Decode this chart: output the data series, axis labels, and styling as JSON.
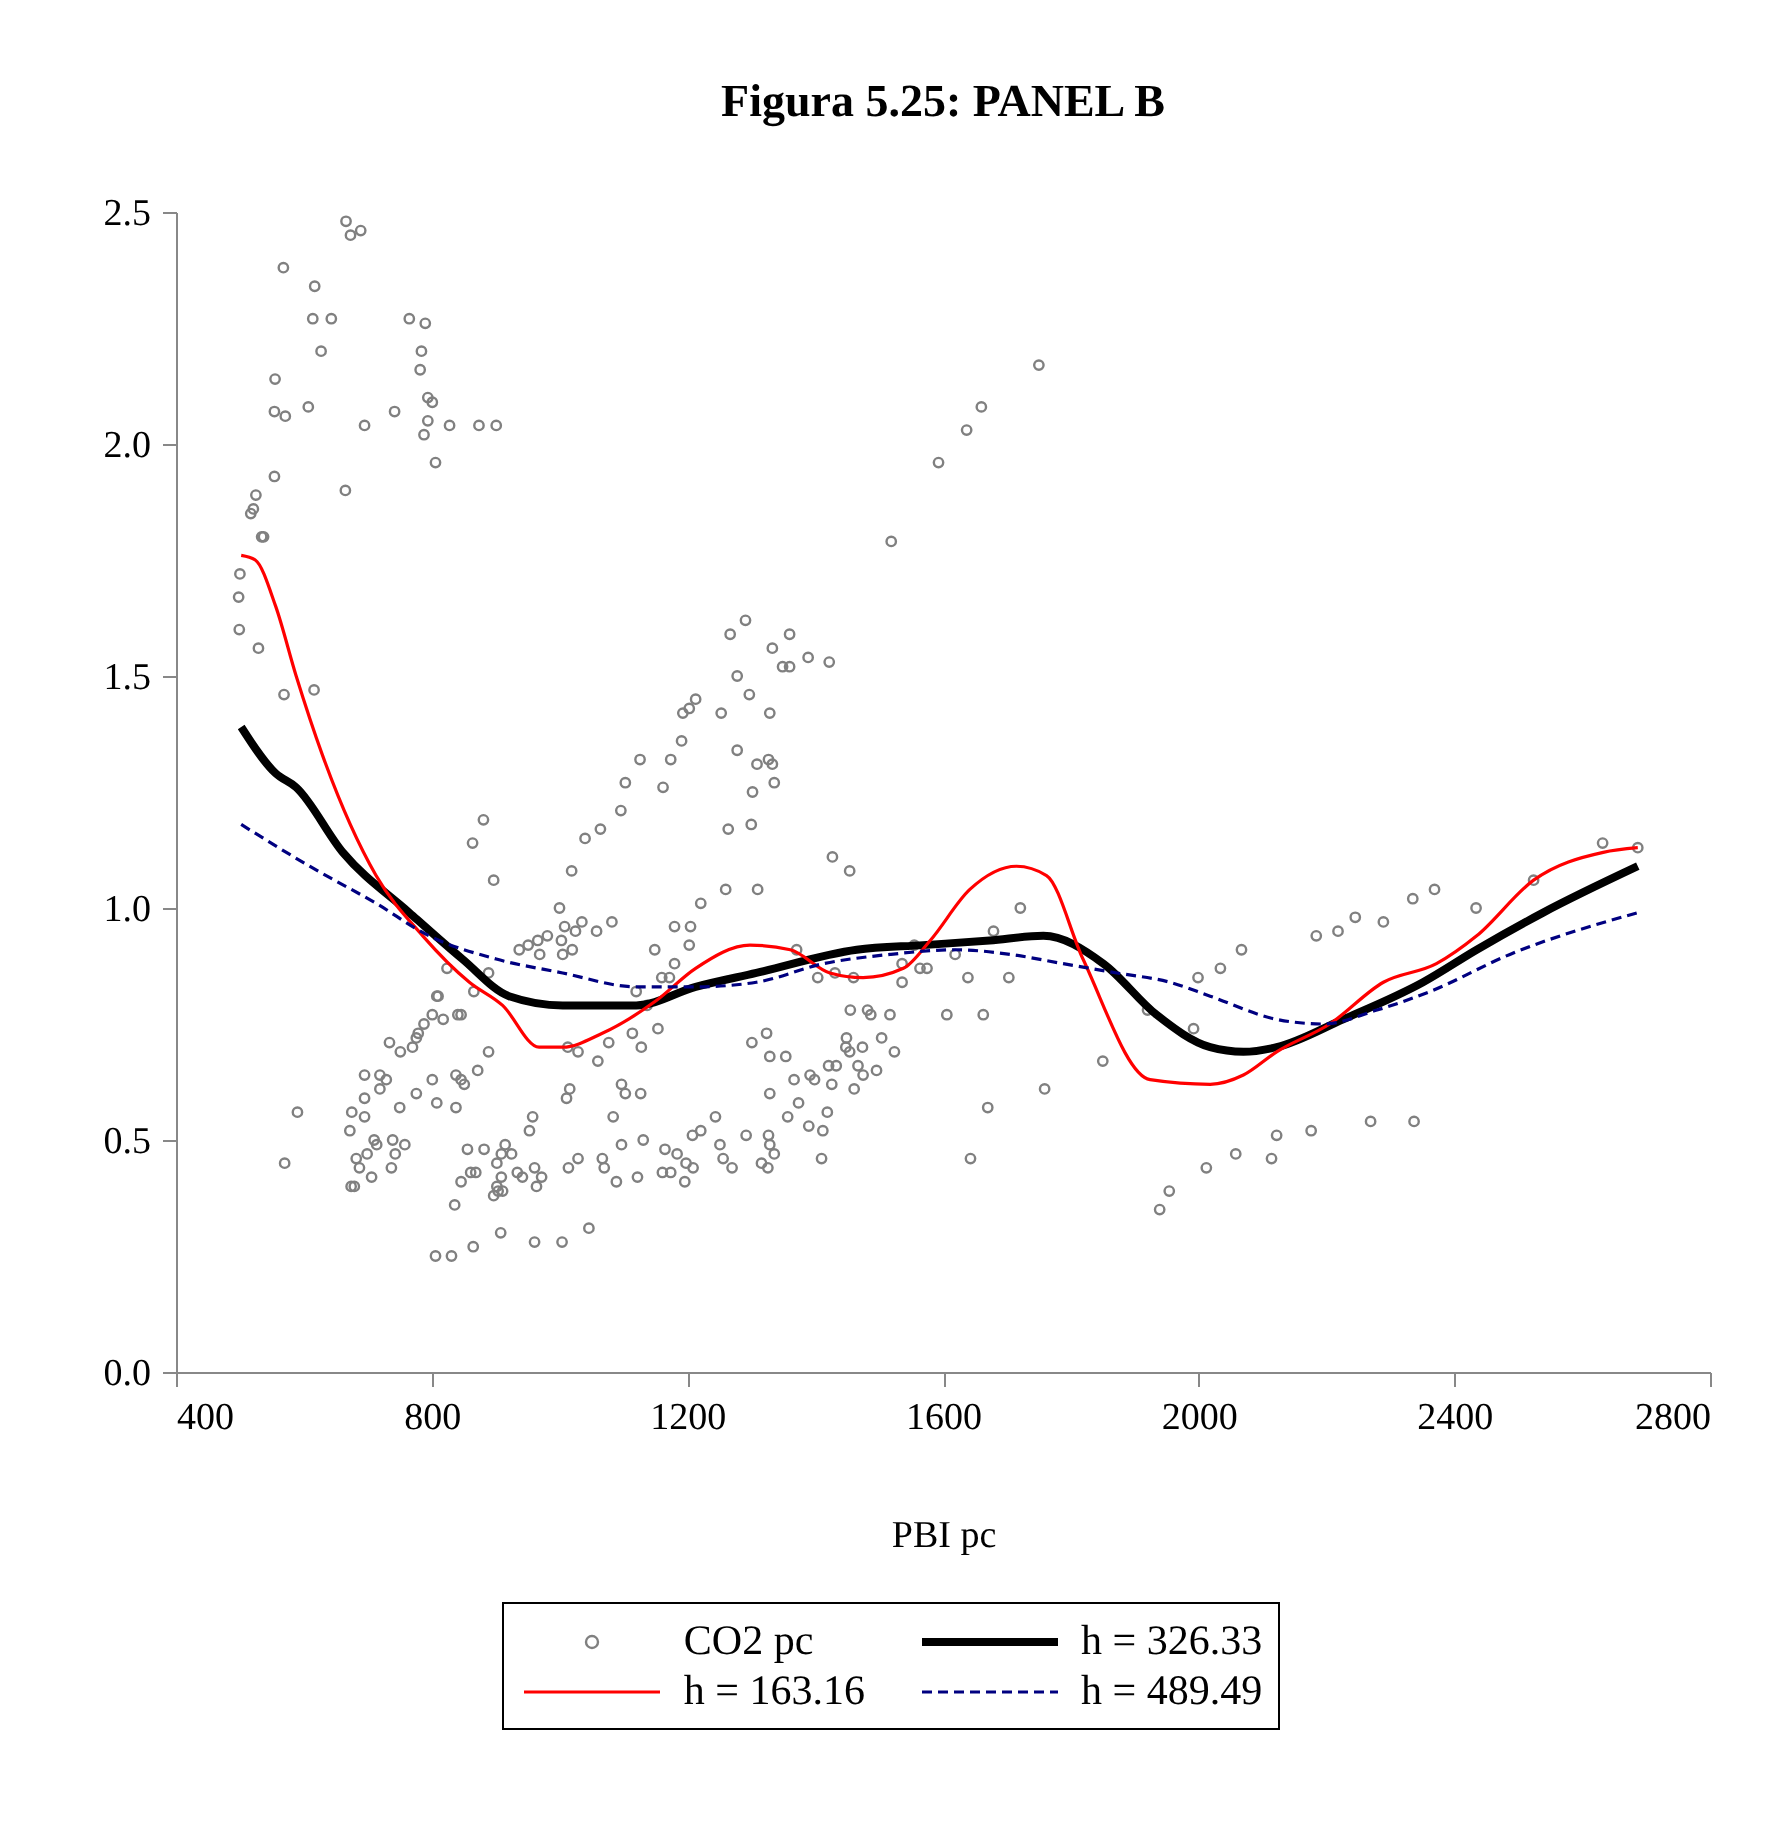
{
  "chart_data": {
    "type": "scatter",
    "title": "Figura 5.25: PANEL B",
    "xlabel": "PBI pc",
    "xlim": [
      400,
      2800
    ],
    "xticks": [
      400,
      800,
      1200,
      1600,
      2000,
      2400,
      2800
    ],
    "ylim": [
      0,
      2.5
    ],
    "yticks": [
      {
        "value": 0,
        "label": "0.0"
      },
      0.5,
      {
        "value": 1,
        "label": "1.0"
      },
      1.5,
      {
        "value": 2,
        "label": "2.0"
      },
      2.5
    ],
    "grid": false,
    "legend": "bottom",
    "series": [
      {
        "name": "CO2 pc",
        "type": "scatter",
        "marker": "circle",
        "color": "#808080",
        "x": [
          666,
          689,
          673,
          568,
          617,
          614,
          643,
          765,
          790,
          627,
          784,
          782,
          555,
          554,
          571,
          607,
          695,
          742,
          794,
          801,
          794,
          788,
          828,
          874,
          901,
          806,
          554,
          665,
          525,
          521,
          517,
          534,
          537,
          500,
          498,
          499,
          529,
          569,
          616,
          1193,
          1203,
          1213,
          1191,
          1126,
          1174,
          1103,
          1162,
          1750,
          1660,
          1637,
          1593,
          1519,
          1291,
          1267,
          1360,
          1333,
          1278,
          1349,
          1360,
          1389,
          1422,
          1297,
          1253,
          1329,
          1278,
          1309,
          1327,
          1333,
          1336,
          1302,
          881,
          864,
          1096,
          1064,
          1040,
          897,
          1019,
          1000,
          1082,
          1035,
          1025,
          1008,
          981,
          966,
          951,
          937,
          969,
          1003,
          1020,
          1005,
          1058,
          1180,
          1205,
          1149,
          1203,
          1180,
          1160,
          1172,
          1120,
          1137,
          824,
          889,
          866,
          808,
          810,
          841,
          846,
          818,
          801,
          788,
          779,
          776,
          770,
          751,
          734,
          889,
          1013,
          1029,
          1060,
          1077,
          1114,
          1128,
          1154,
          695,
          719,
          729,
          719,
          695,
          675,
          695,
          672,
          590,
          570,
          801,
          776,
          750,
          808,
          838,
          838,
          846,
          851,
          872,
          710,
          714,
          739,
          758,
          743,
          682,
          699,
          687,
          737,
          706,
          674,
          679,
          958,
          953,
          915,
          856,
          882,
          925,
          909,
          902,
          861,
          869,
          846,
          934,
          942,
          961,
          972,
          964,
          909,
          902,
          897,
          911,
          904,
          836,
          1014,
          1029,
          1067,
          1070,
          1089,
          1097,
          1131,
          1122,
          1084,
          1097,
          1103,
          1127,
          1016,
          1011,
          1165,
          1184,
          1161,
          1174,
          1198,
          1196,
          1208,
          806,
          831,
          865,
          908,
          961,
          1004,
          1046,
          1264,
          1300,
          1427,
          1454,
          1260,
          1310,
          1221,
          1371,
          1721,
          1679,
          1555,
          1536,
          1564,
          1575,
          1619,
          1404,
          1431,
          1460,
          1536,
          1639,
          1703,
          1455,
          1482,
          1487,
          1517,
          1606,
          1663,
          1324,
          1301,
          1329,
          1354,
          1449,
          1448,
          1474,
          1454,
          1504,
          1524,
          1467,
          1496,
          1475,
          1421,
          1433,
          1392,
          1399,
          1367,
          1426,
          1461,
          1329,
          1374,
          1419,
          1357,
          1390,
          1412,
          1244,
          1221,
          1251,
          1292,
          1327,
          1329,
          1336,
          1316,
          1326,
          1256,
          1270,
          1209,
          1410,
          1759,
          1670,
          1643,
          1850,
          1920,
          1992,
          1999,
          1939,
          1954,
          2012,
          2034,
          2067,
          2058,
          2114,
          2122,
          2176,
          2269,
          2337,
          2184,
          2218,
          2245,
          2289,
          2335,
          2369,
          2434,
          2524,
          2632,
          2687
        ],
        "values": [
          2.48,
          2.46,
          2.45,
          2.38,
          2.34,
          2.27,
          2.27,
          2.27,
          2.26,
          2.2,
          2.2,
          2.16,
          2.14,
          2.07,
          2.06,
          2.08,
          2.04,
          2.07,
          2.1,
          2.09,
          2.05,
          2.02,
          2.04,
          2.04,
          2.04,
          1.96,
          1.93,
          1.9,
          1.89,
          1.86,
          1.85,
          1.8,
          1.8,
          1.72,
          1.67,
          1.6,
          1.56,
          1.46,
          1.47,
          1.42,
          1.43,
          1.45,
          1.36,
          1.32,
          1.32,
          1.27,
          1.26,
          2.17,
          2.08,
          2.03,
          1.96,
          1.79,
          1.62,
          1.59,
          1.59,
          1.56,
          1.5,
          1.52,
          1.52,
          1.54,
          1.53,
          1.46,
          1.42,
          1.42,
          1.34,
          1.31,
          1.32,
          1.31,
          1.27,
          1.25,
          1.19,
          1.14,
          1.21,
          1.17,
          1.15,
          1.06,
          1.08,
          1.0,
          0.97,
          0.97,
          0.95,
          0.96,
          0.94,
          0.93,
          0.92,
          0.91,
          0.9,
          0.93,
          0.91,
          0.9,
          0.95,
          0.96,
          0.96,
          0.91,
          0.92,
          0.88,
          0.85,
          0.85,
          0.82,
          0.79,
          0.87,
          0.86,
          0.82,
          0.81,
          0.81,
          0.77,
          0.77,
          0.76,
          0.77,
          0.75,
          0.73,
          0.72,
          0.7,
          0.69,
          0.71,
          0.69,
          0.7,
          0.69,
          0.67,
          0.71,
          0.73,
          0.7,
          0.74,
          0.64,
          0.64,
          0.63,
          0.61,
          0.59,
          0.56,
          0.55,
          0.52,
          0.56,
          0.45,
          0.63,
          0.6,
          0.57,
          0.58,
          0.57,
          0.64,
          0.63,
          0.62,
          0.65,
          0.5,
          0.49,
          0.5,
          0.49,
          0.47,
          0.46,
          0.47,
          0.44,
          0.44,
          0.42,
          0.4,
          0.4,
          0.55,
          0.52,
          0.49,
          0.48,
          0.48,
          0.47,
          0.47,
          0.45,
          0.43,
          0.43,
          0.41,
          0.43,
          0.42,
          0.44,
          0.42,
          0.4,
          0.42,
          0.4,
          0.38,
          0.39,
          0.39,
          0.36,
          0.44,
          0.46,
          0.46,
          0.44,
          0.41,
          0.49,
          0.5,
          0.42,
          0.55,
          0.62,
          0.6,
          0.6,
          0.61,
          0.59,
          0.48,
          0.47,
          0.43,
          0.43,
          0.45,
          0.41,
          0.51,
          0.25,
          0.25,
          0.27,
          0.3,
          0.28,
          0.28,
          0.31,
          1.17,
          1.18,
          1.11,
          1.08,
          1.04,
          1.04,
          1.01,
          0.91,
          1.0,
          0.95,
          0.92,
          0.88,
          0.87,
          0.87,
          0.9,
          0.85,
          0.86,
          0.85,
          0.84,
          0.85,
          0.85,
          0.78,
          0.78,
          0.77,
          0.77,
          0.77,
          0.77,
          0.73,
          0.71,
          0.68,
          0.68,
          0.72,
          0.7,
          0.7,
          0.69,
          0.72,
          0.69,
          0.66,
          0.65,
          0.64,
          0.66,
          0.66,
          0.64,
          0.63,
          0.63,
          0.62,
          0.61,
          0.6,
          0.58,
          0.56,
          0.55,
          0.53,
          0.52,
          0.55,
          0.52,
          0.49,
          0.51,
          0.51,
          0.49,
          0.47,
          0.45,
          0.44,
          0.46,
          0.44,
          0.44,
          0.46,
          0.61,
          0.57,
          0.46,
          0.67,
          0.78,
          0.74,
          0.85,
          0.35,
          0.39,
          0.44,
          0.87,
          0.91,
          0.47,
          0.46,
          0.51,
          0.52,
          0.54,
          0.54,
          0.94,
          0.95,
          0.98,
          0.97,
          1.02,
          1.04,
          1.0,
          1.06,
          1.14,
          1.13
        ]
      },
      {
        "name": "h = 326.33",
        "type": "line",
        "line_style": "solid",
        "color": "#000000",
        "x": [
          502,
          556,
          588,
          661,
          765,
          848,
          921,
          1005,
          1120,
          1213,
          1308,
          1465,
          1569,
          1673,
          1757,
          1851,
          1934,
          2018,
          2070,
          2122,
          2226,
          2351,
          2435,
          2539,
          2687
        ],
        "values": [
          1.39,
          1.29,
          1.26,
          1.12,
          0.99,
          0.89,
          0.81,
          0.79,
          0.79,
          0.83,
          0.86,
          0.91,
          0.92,
          0.93,
          0.94,
          0.88,
          0.77,
          0.7,
          0.69,
          0.7,
          0.76,
          0.84,
          0.91,
          0.99,
          1.09
        ]
      },
      {
        "name": "h = 163.16",
        "type": "line",
        "line_style": "solid",
        "color": "#ff0000",
        "x": [
          502,
          524,
          556,
          588,
          629,
          713,
          786,
          859,
          911,
          968,
          1005,
          1067,
          1151,
          1213,
          1298,
          1361,
          1423,
          1475,
          1538,
          1580,
          1642,
          1715,
          1762,
          1819,
          1924,
          2018,
          2070,
          2122,
          2205,
          2289,
          2372,
          2435,
          2524,
          2633,
          2687
        ],
        "values": [
          1.76,
          1.75,
          1.65,
          1.5,
          1.33,
          1.07,
          0.94,
          0.84,
          0.79,
          0.7,
          0.7,
          0.73,
          0.8,
          0.87,
          0.92,
          0.91,
          0.86,
          0.85,
          0.87,
          0.93,
          1.04,
          1.09,
          1.07,
          0.89,
          0.63,
          0.62,
          0.64,
          0.69,
          0.75,
          0.84,
          0.88,
          0.94,
          1.06,
          1.12,
          1.13
        ]
      },
      {
        "name": "h = 489.49",
        "type": "line",
        "line_style": "dashed",
        "color": "#000080",
        "x": [
          502,
          609,
          713,
          796,
          901,
          1005,
          1120,
          1213,
          1308,
          1413,
          1517,
          1621,
          1705,
          1788,
          1872,
          1955,
          2018,
          2122,
          2195,
          2279,
          2362,
          2487,
          2687
        ],
        "values": [
          1.18,
          1.09,
          1.01,
          0.94,
          0.89,
          0.86,
          0.83,
          0.83,
          0.84,
          0.88,
          0.9,
          0.91,
          0.9,
          0.88,
          0.86,
          0.84,
          0.81,
          0.76,
          0.75,
          0.78,
          0.82,
          0.9,
          0.99
        ]
      }
    ]
  }
}
